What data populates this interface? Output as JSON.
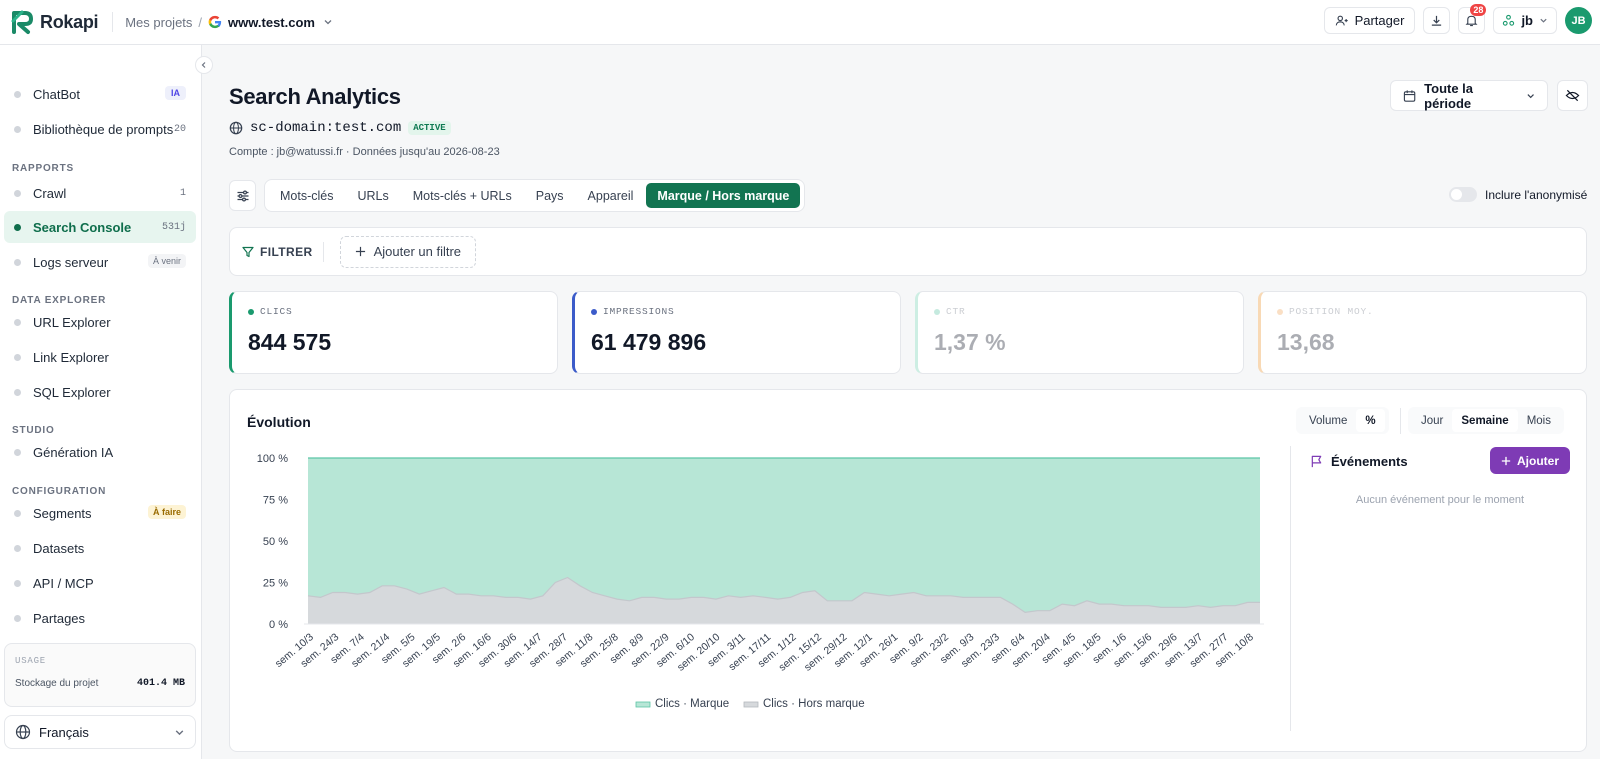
{
  "app": {
    "name": "Rokapi"
  },
  "breadcrumb": {
    "projects": "Mes projets",
    "separator": "/",
    "site": "www.test.com"
  },
  "topbar": {
    "share_label": "Partager",
    "notifications_count": "28",
    "user_short": "jb",
    "avatar_initials": "JB"
  },
  "sidebar": {
    "items_top": [
      {
        "label": "ChatBot",
        "badge": "IA"
      },
      {
        "label": "Bibliothèque de prompts",
        "badge": "20"
      }
    ],
    "section_reports": "RAPPORTS",
    "reports": [
      {
        "label": "Crawl",
        "badge": "1"
      },
      {
        "label": "Search Console",
        "badge": "531j"
      },
      {
        "label": "Logs serveur",
        "badge": "À venir"
      }
    ],
    "section_data": "DATA EXPLORER",
    "data": [
      {
        "label": "URL Explorer"
      },
      {
        "label": "Link Explorer"
      },
      {
        "label": "SQL Explorer"
      }
    ],
    "section_studio": "STUDIO",
    "studio": [
      {
        "label": "Génération IA"
      }
    ],
    "section_config": "CONFIGURATION",
    "config": [
      {
        "label": "Segments",
        "badge": "À faire"
      },
      {
        "label": "Datasets"
      },
      {
        "label": "API / MCP"
      },
      {
        "label": "Partages"
      }
    ],
    "usage": {
      "title": "USAGE",
      "label": "Stockage du projet",
      "value": "401.4 MB"
    },
    "language": "Français"
  },
  "main": {
    "title": "Search Analytics",
    "domain": "sc-domain:test.com",
    "domain_status": "ACTIVE",
    "account": "Compte : jb@watussi.fr · Données jusqu'au 2026-08-23",
    "period": "Toute la période",
    "tabs": [
      {
        "label": "Mots-clés"
      },
      {
        "label": "URLs"
      },
      {
        "label": "Mots-clés + URLs"
      },
      {
        "label": "Pays"
      },
      {
        "label": "Appareil"
      },
      {
        "label": "Marque / Hors marque"
      }
    ],
    "anonymized_label": "Inclure l'anonymisé",
    "filter_label": "FILTRER",
    "add_filter_label": "Ajouter un filtre"
  },
  "kpis": [
    {
      "label": "CLICS",
      "value": "844 575",
      "color": "#1a9a6e"
    },
    {
      "label": "IMPRESSIONS",
      "value": "61 479 896",
      "color": "#3b5bc9"
    },
    {
      "label": "CTR",
      "value": "1,37 %",
      "color": "#5cc5a6"
    },
    {
      "label": "POSITION MOY.",
      "value": "13,68",
      "color": "#f2a65a"
    }
  ],
  "evolution": {
    "title": "Évolution",
    "mode_toggle": [
      "Volume",
      "%"
    ],
    "granularity_toggle": [
      "Jour",
      "Semaine",
      "Mois"
    ],
    "events_title": "Événements",
    "add_event_label": "Ajouter",
    "no_events": "Aucun événement pour le moment"
  },
  "colors": {
    "brand_green": "#127451",
    "marque_fill": "#b7e6d6",
    "hors_marque_fill": "#d6d9dc",
    "purple": "#7e3bb5"
  },
  "chart_data": {
    "type": "area",
    "stacked": true,
    "percent": true,
    "y_ticks": [
      "100 %",
      "75 %",
      "50 %",
      "25 %",
      "0 %"
    ],
    "ylim": [
      0,
      100
    ],
    "x_ticks": [
      "sem. 10/3",
      "sem. 24/3",
      "sem. 7/4",
      "sem. 21/4",
      "sem. 5/5",
      "sem. 19/5",
      "sem. 2/6",
      "sem. 16/6",
      "sem. 30/6",
      "sem. 14/7",
      "sem. 28/7",
      "sem. 11/8",
      "sem. 25/8",
      "sem. 8/9",
      "sem. 22/9",
      "sem. 6/10",
      "sem. 20/10",
      "sem. 3/11",
      "sem. 17/11",
      "sem. 1/12",
      "sem. 15/12",
      "sem. 29/12",
      "sem. 12/1",
      "sem. 26/1",
      "sem. 9/2",
      "sem. 23/2",
      "sem. 9/3",
      "sem. 23/3",
      "sem. 6/4",
      "sem. 20/4",
      "sem. 4/5",
      "sem. 18/5",
      "sem. 1/6",
      "sem. 15/6",
      "sem. 29/6",
      "sem. 13/7",
      "sem. 27/7",
      "sem. 10/8"
    ],
    "series": [
      {
        "name": "Clics · Hors marque",
        "values": [
          17,
          16,
          19,
          19,
          18,
          19,
          23,
          23,
          21,
          18,
          20,
          22,
          18,
          18,
          17,
          17,
          16,
          16,
          15,
          17,
          25,
          28,
          23,
          19,
          17,
          15,
          14,
          16,
          16,
          15,
          15,
          16,
          16,
          15,
          17,
          16,
          17,
          16,
          15,
          16,
          19,
          20,
          14,
          14,
          14,
          19,
          18,
          17,
          18,
          19,
          17,
          17,
          17,
          16,
          16,
          16,
          16,
          12,
          7,
          8,
          8,
          12,
          11,
          14,
          12,
          12,
          11,
          11,
          11,
          10,
          10,
          10,
          11,
          10,
          11,
          11,
          13,
          13
        ]
      },
      {
        "name": "Clics · Marque",
        "values": [
          83,
          84,
          81,
          81,
          82,
          81,
          77,
          77,
          79,
          82,
          80,
          78,
          82,
          82,
          83,
          83,
          84,
          84,
          85,
          83,
          75,
          72,
          77,
          81,
          83,
          85,
          86,
          84,
          84,
          85,
          85,
          84,
          84,
          85,
          83,
          84,
          83,
          84,
          85,
          84,
          81,
          80,
          86,
          86,
          86,
          81,
          82,
          83,
          82,
          81,
          83,
          83,
          83,
          84,
          84,
          84,
          84,
          88,
          93,
          92,
          92,
          88,
          89,
          86,
          88,
          88,
          89,
          89,
          89,
          90,
          90,
          90,
          89,
          90,
          89,
          89,
          87,
          87
        ]
      }
    ]
  }
}
